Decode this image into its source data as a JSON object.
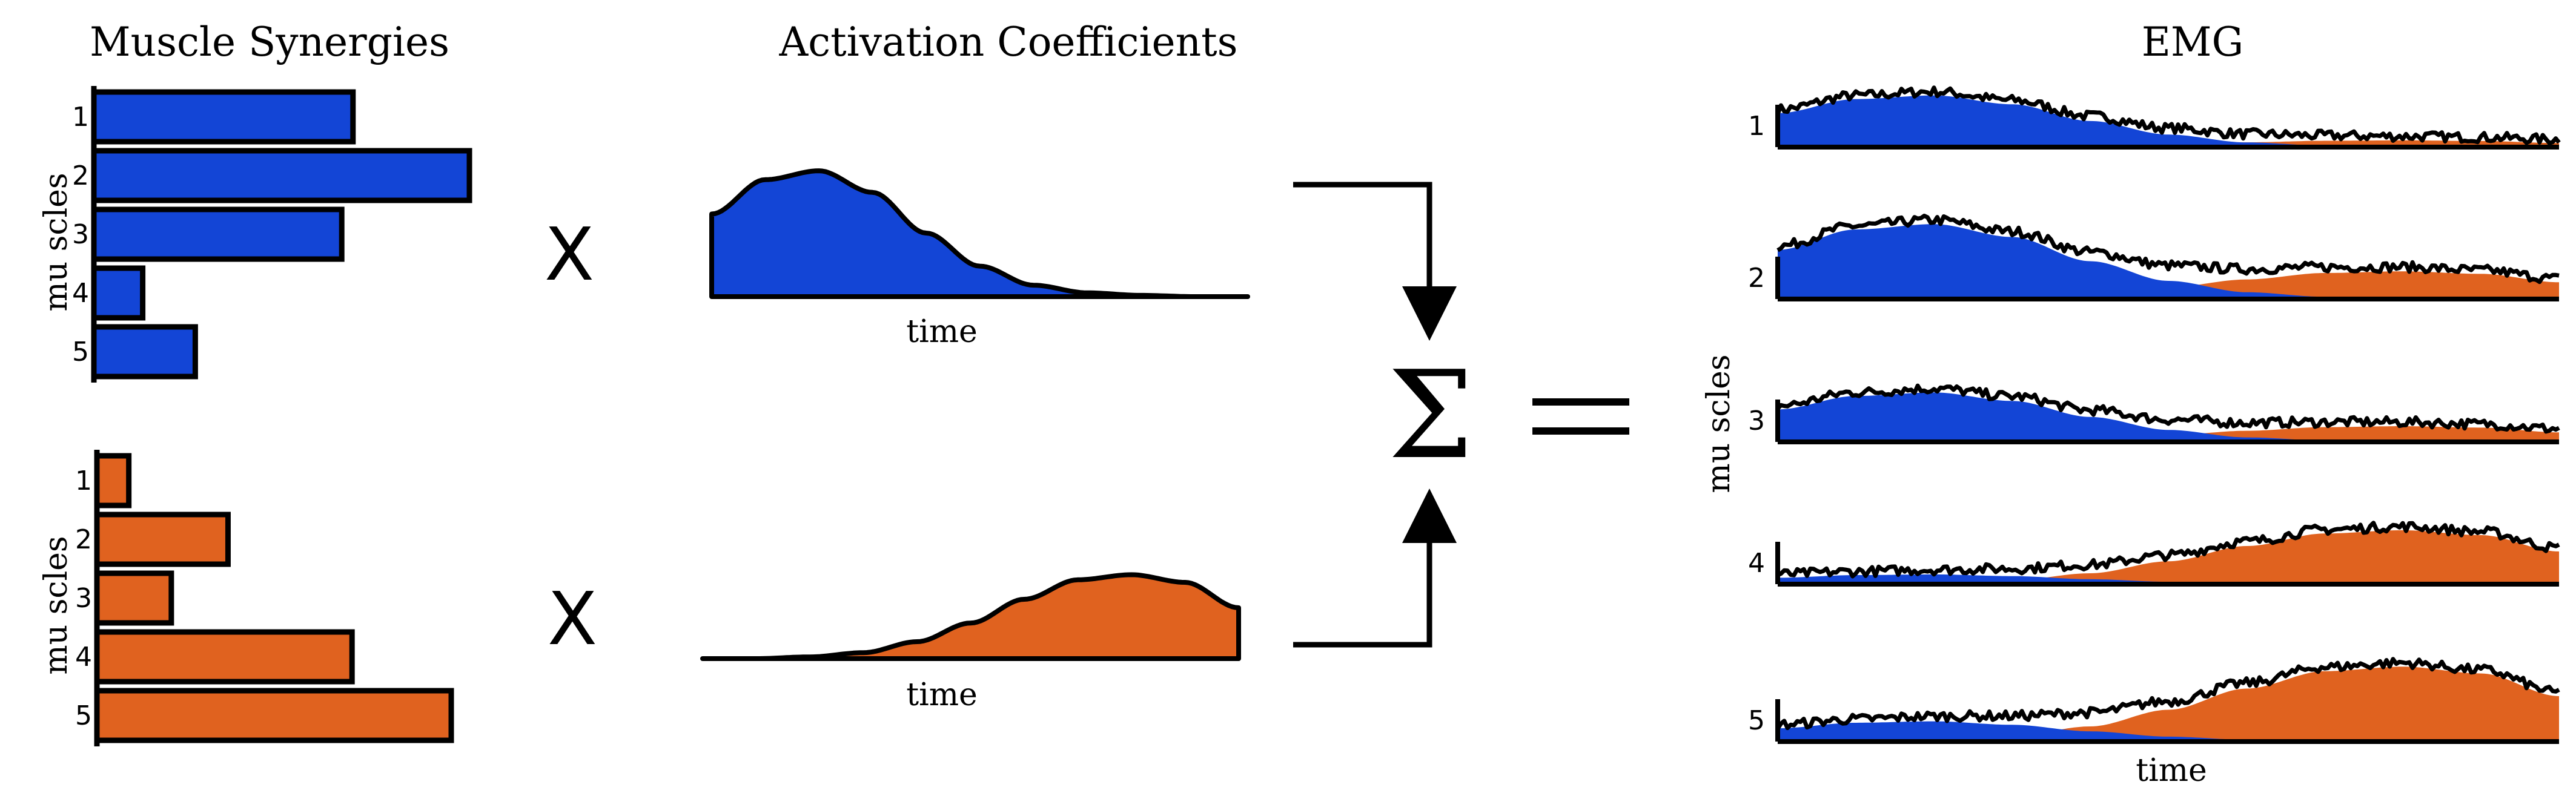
{
  "titles": {
    "synergies": "Muscle Synergies",
    "activations": "Activation Coefficients",
    "emg": "EMG"
  },
  "labels": {
    "muscles": "mu scles",
    "time": "time",
    "multiply": "X",
    "sum": "Σ",
    "equals": "="
  },
  "muscle_numbers": [
    "1",
    "2",
    "3",
    "4",
    "5"
  ],
  "colors": {
    "synergy1": "#1345d6",
    "synergy2": "#e0621f",
    "stroke": "#000000"
  },
  "chart_data": [
    {
      "type": "bar",
      "orientation": "horizontal",
      "categories": [
        "1",
        "2",
        "3",
        "4",
        "5"
      ],
      "values": [
        0.69,
        1.0,
        0.66,
        0.13,
        0.27
      ],
      "ylabel": "mu scles"
    },
    {
      "type": "bar",
      "orientation": "horizontal",
      "categories": [
        "1",
        "2",
        "3",
        "4",
        "5"
      ],
      "values": [
        0.09,
        0.37,
        0.21,
        0.72,
        1.0
      ],
      "ylabel": "mu scles"
    },
    {
      "type": "area",
      "xlabel": "time",
      "shape": "early peak then decay",
      "x": [
        0,
        0.1,
        0.2,
        0.3,
        0.4,
        0.5,
        0.6,
        0.7,
        0.8,
        0.9,
        1.0
      ],
      "values": [
        0.65,
        0.92,
        0.99,
        0.82,
        0.5,
        0.24,
        0.09,
        0.03,
        0.01,
        0.0,
        0.0
      ]
    },
    {
      "type": "area",
      "xlabel": "time",
      "shape": "late rise and peak",
      "x": [
        0,
        0.1,
        0.2,
        0.3,
        0.4,
        0.5,
        0.6,
        0.7,
        0.8,
        0.9,
        1.0
      ],
      "values": [
        0.0,
        0.0,
        0.02,
        0.07,
        0.2,
        0.42,
        0.7,
        0.93,
        0.99,
        0.9,
        0.6
      ]
    },
    {
      "type": "area",
      "xlabel": "time",
      "ylabel": "mu scles",
      "categories": [
        "1",
        "2",
        "3",
        "4",
        "5"
      ],
      "series": [
        {
          "values": [
            0.69,
            1.0,
            0.66,
            0.13,
            0.27
          ]
        },
        {
          "values": [
            0.09,
            0.37,
            0.21,
            0.72,
            1.0
          ]
        }
      ]
    }
  ]
}
